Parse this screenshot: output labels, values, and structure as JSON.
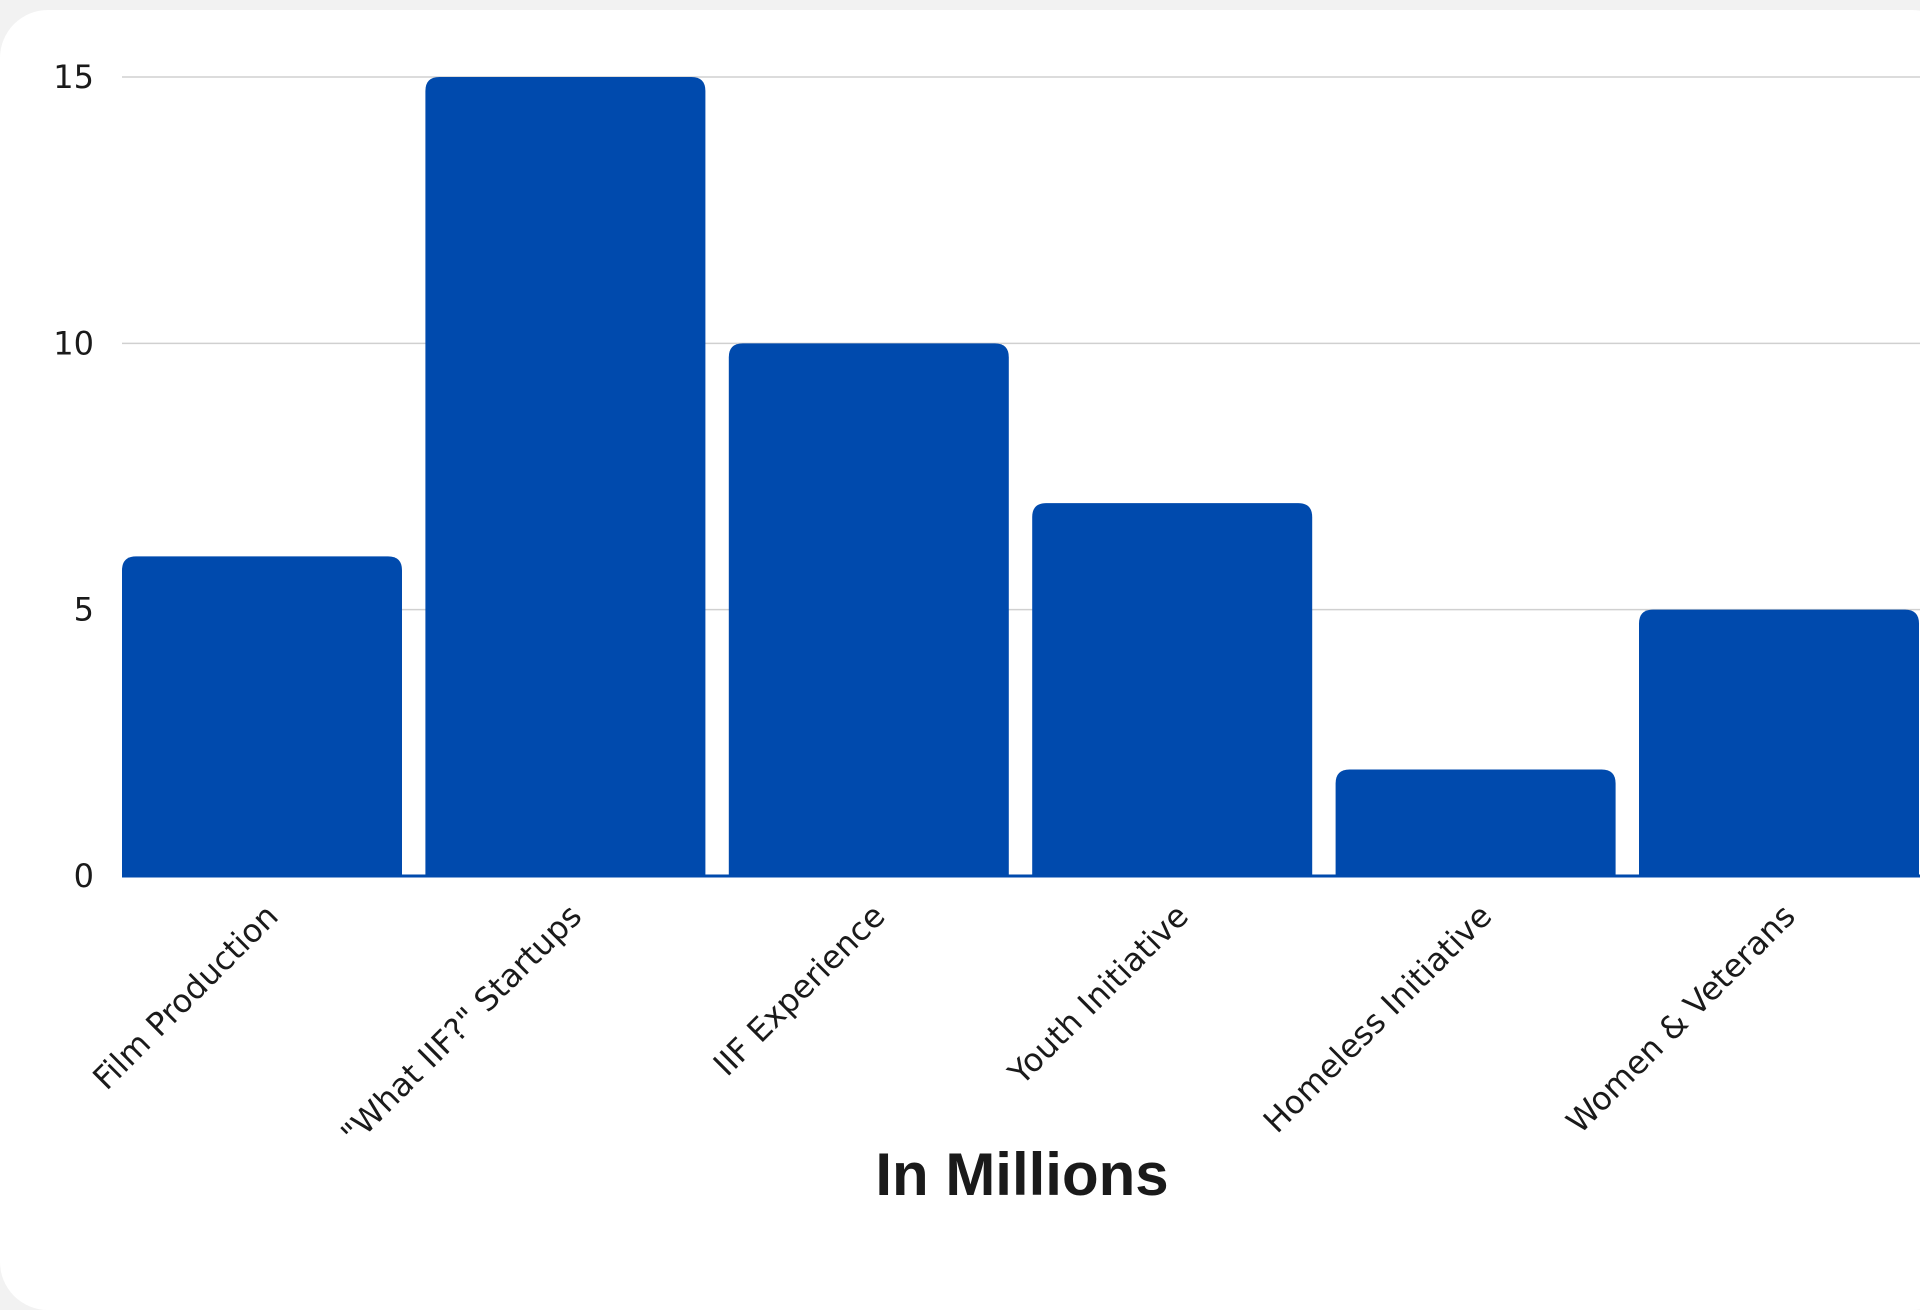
{
  "chart_data": {
    "type": "bar",
    "categories": [
      "Film Production",
      "\"What IIF?\" Startups",
      "IIF Experience",
      "Youth Initiative",
      "Homeless Initiative",
      "Women & Veterans"
    ],
    "values": [
      6,
      15,
      10,
      7,
      2,
      5
    ],
    "title": "",
    "xlabel": "In Millions",
    "ylabel": "",
    "ylim": [
      0,
      15
    ],
    "yticks": [
      0,
      5,
      10,
      15
    ],
    "grid": true,
    "legend": "none",
    "colors": {
      "bar": "#004aad",
      "grid": "#d0d0d0",
      "axis": "#004aad",
      "background": "#ffffff"
    }
  }
}
